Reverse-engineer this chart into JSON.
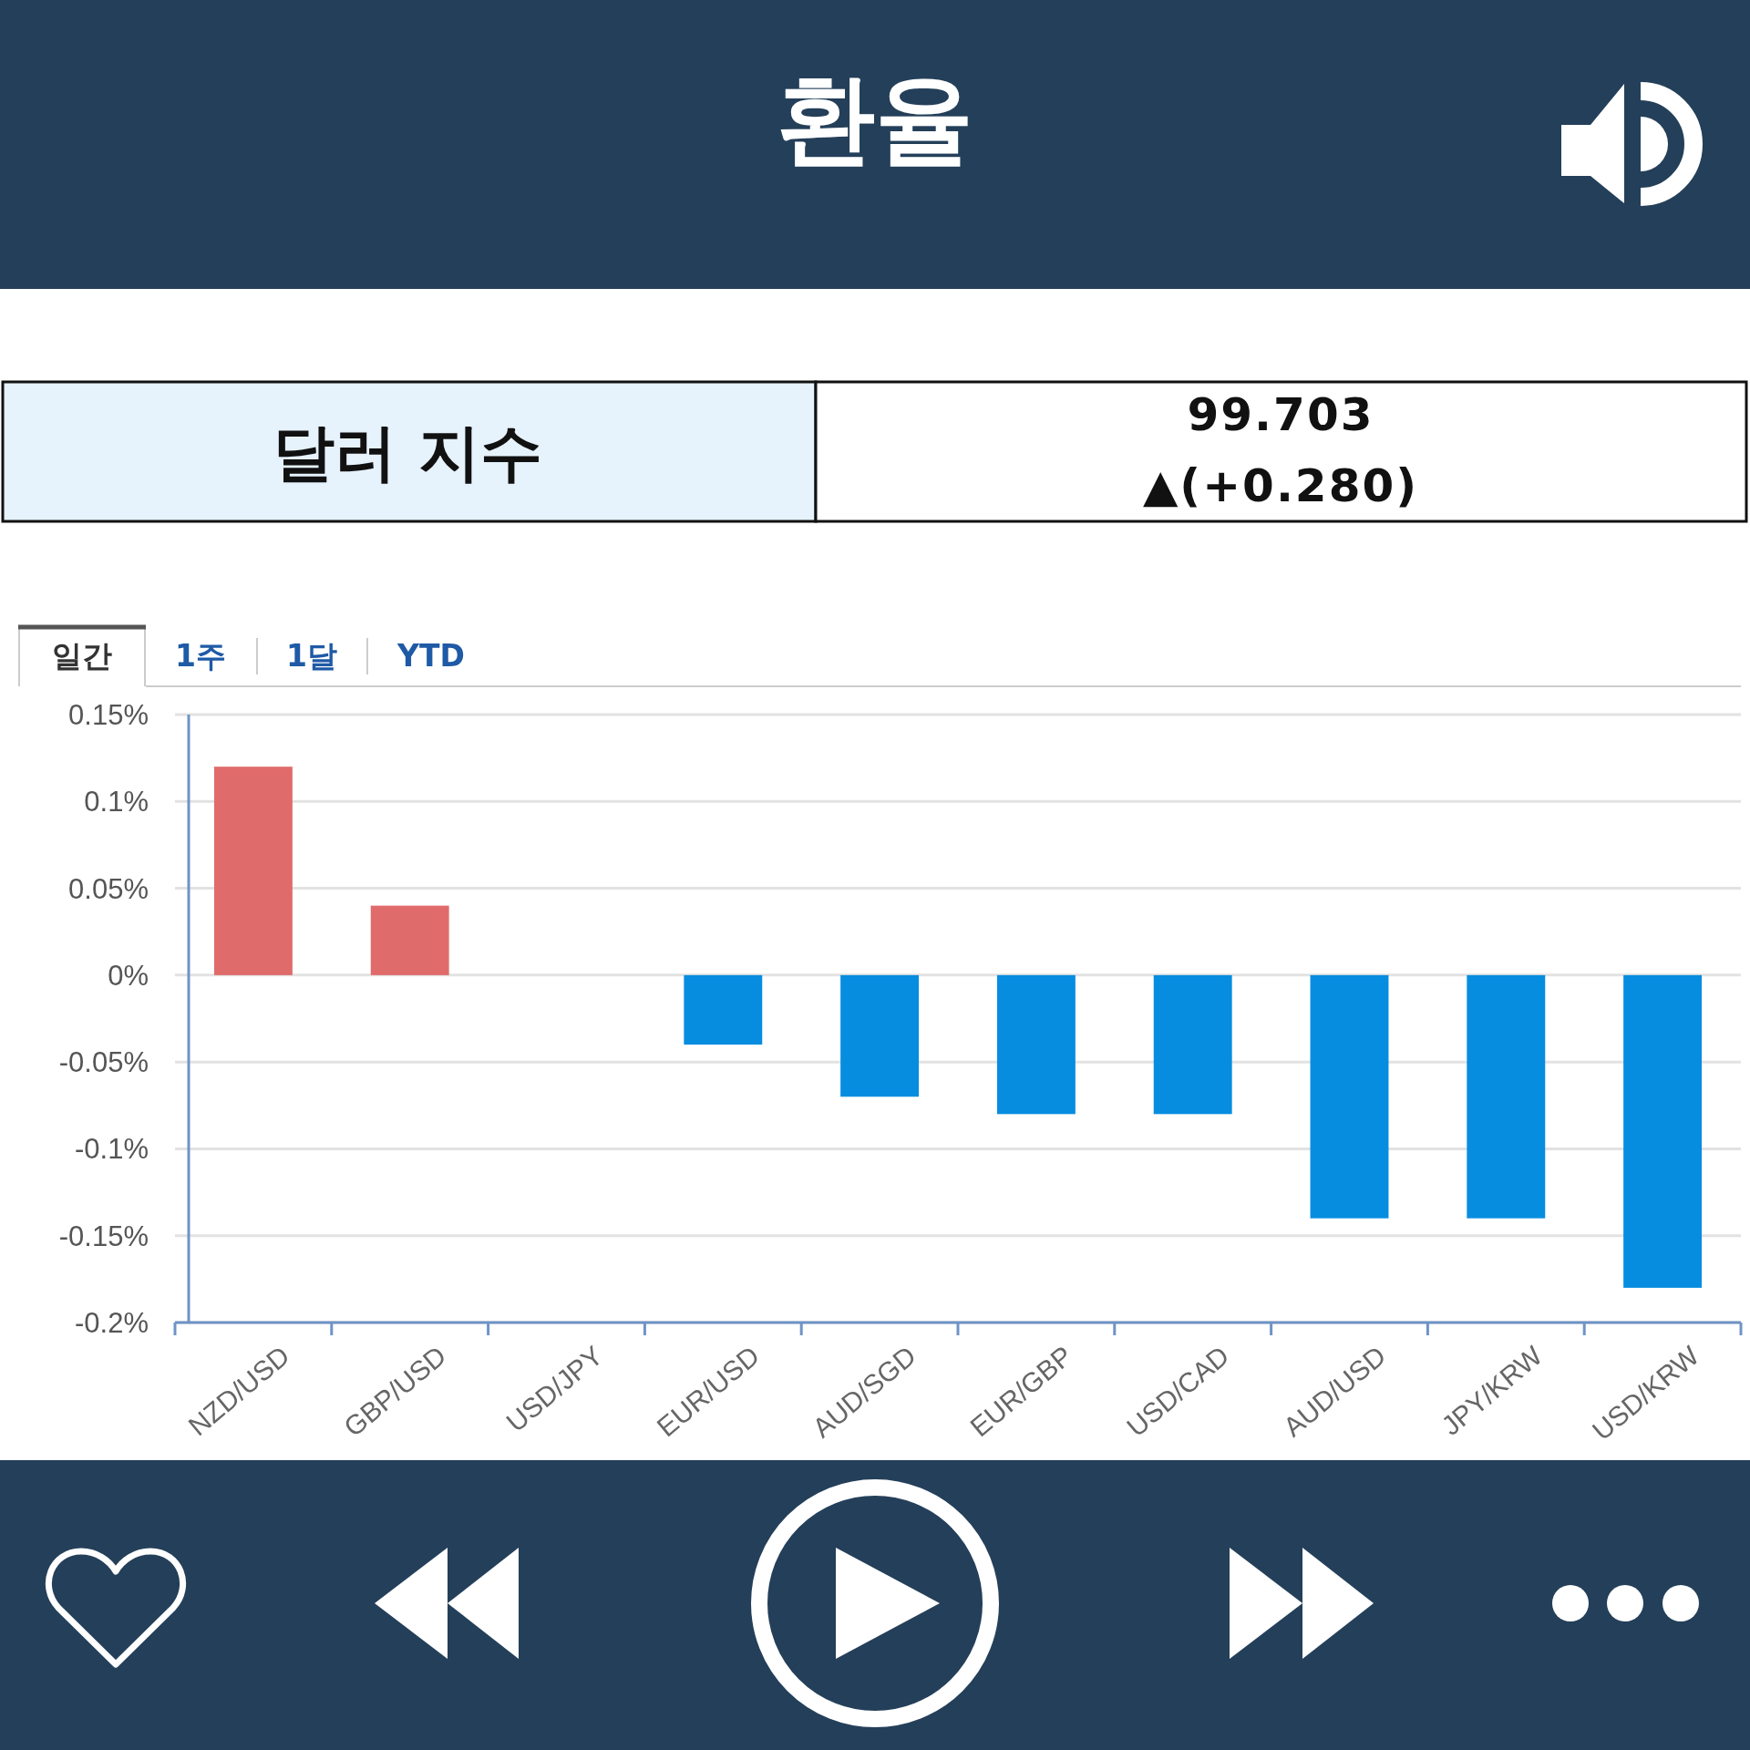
{
  "chart_data": {
    "type": "bar",
    "title": "환율",
    "categories": [
      "NZD/USD",
      "GBP/USD",
      "USD/JPY",
      "EUR/USD",
      "AUD/SGD",
      "EUR/GBP",
      "USD/CAD",
      "AUD/USD",
      "JPY/KRW",
      "USD/KRW"
    ],
    "values": [
      0.12,
      0.04,
      0,
      -0.04,
      -0.07,
      -0.08,
      -0.08,
      -0.14,
      -0.14,
      -0.18
    ],
    "colors": [
      "#e06b6b",
      "#e06b6b",
      "#068de0",
      "#068de0",
      "#068de0",
      "#068de0",
      "#068de0",
      "#068de0",
      "#068de0",
      "#068de0"
    ],
    "ylim": [
      -0.2,
      0.15
    ],
    "yticks": [
      {
        "value": 0.15,
        "label": "0.15%"
      },
      {
        "value": 0.1,
        "label": "0.1%"
      },
      {
        "value": 0.05,
        "label": "0.05%"
      },
      {
        "value": 0,
        "label": "0%"
      },
      {
        "value": -0.05,
        "label": "-0.05%"
      },
      {
        "value": -0.1,
        "label": "-0.1%"
      },
      {
        "value": -0.15,
        "label": "-0.15%"
      },
      {
        "value": -0.2,
        "label": "-0.2%"
      }
    ],
    "grid": "y",
    "annotations": [
      "달러 지수",
      "99.703",
      "▲(+0.280)",
      "일간",
      "1주",
      "1달",
      "YTD"
    ]
  }
}
